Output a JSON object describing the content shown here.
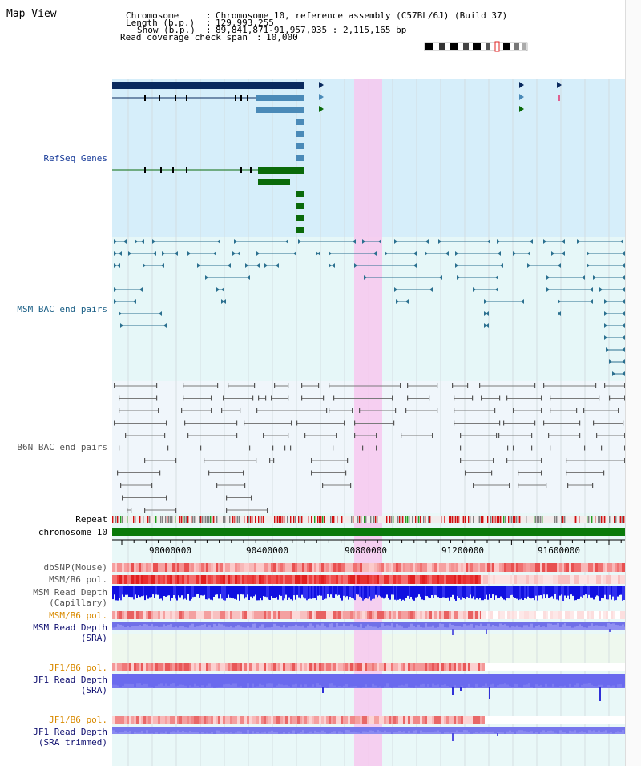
{
  "window_title": "Map View",
  "header": {
    "chromosome_label": "Chromosome",
    "chromosome_value": "Chromosome 10, reference assembly (C57BL/6J) (Build 37)",
    "length_label": "Length (b.p.)",
    "length_value": "129,993,255",
    "show_label": "Show (b.p.)",
    "show_value": "89,841,871-91,957,035 : 2,115,165 bp",
    "coverage_label": "Read coverage check span",
    "coverage_value": "10,000"
  },
  "tracks": {
    "refseq": "RefSeq Genes",
    "msm_bac": "MSM BAC end pairs",
    "b6n_bac": "B6N BAC end pairs",
    "repeat": "Repeat",
    "chromosome": "chromosome 10",
    "dbsnp": "dbSNP(Mouse)",
    "msm_b6_pol_1": "MSM/B6 pol.",
    "msm_depth_cap_1": "MSM Read Depth",
    "msm_depth_cap_2": "(Capillary)",
    "msm_b6_pol_2": "MSM/B6 pol.",
    "msm_depth_sra_1": "MSM Read Depth",
    "msm_depth_sra_2": "(SRA)",
    "jf1_b6_pol_1": "JF1/B6 pol.",
    "jf1_depth_sra_1": "JF1 Read Depth",
    "jf1_depth_sra_2": "(SRA)",
    "jf1_b6_pol_2": "JF1/B6 pol.",
    "jf1_depth_trim_1": "JF1 Read Depth",
    "jf1_depth_trim_2": "(SRA trimmed)"
  },
  "axis": {
    "ticks": [
      "90000000",
      "90400000",
      "90800000",
      "91200000",
      "91600000"
    ]
  },
  "colors": {
    "refseq_bg": "#d6eefa",
    "bac_bg": "#e6f7f8",
    "highlight": "#f7c8ee",
    "chromosome_bar": "#0a7a0a",
    "refseq_dark": "#0a2a5e",
    "refseq_mid": "#4a8ab8",
    "refseq_green": "#0a6a0a",
    "msm_line": "#2a6f8f",
    "b6n_line": "#7a7a7a",
    "depth_blue": "#1010e0",
    "depth_light": "#7a7af0"
  }
}
